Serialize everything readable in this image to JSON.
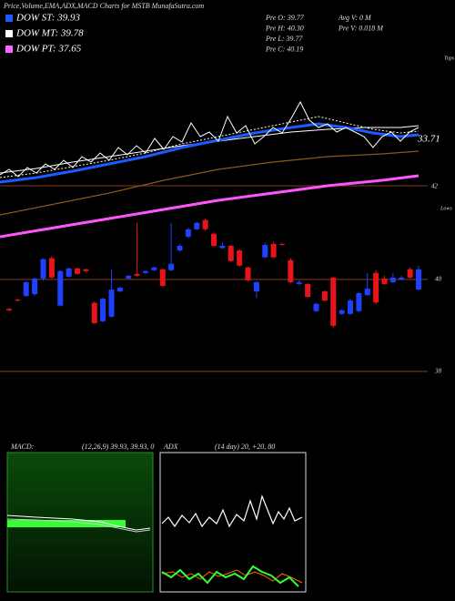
{
  "header": {
    "title": "Price,Volume,EMA,ADX,MACD Charts for MSTB MunafaSutra.com"
  },
  "legend": [
    {
      "label": "DOW ST: 39.93",
      "color": "#1a5cff"
    },
    {
      "label": "DOW MT: 39.78",
      "color": "#ffffff"
    },
    {
      "label": "DOW PT: 37.65",
      "color": "#ff66ff"
    }
  ],
  "stats": [
    "Pre O: 39.77",
    "Pre H: 40.30",
    "Pre L: 39.77",
    "Pre C: 40.19",
    "Avg V: 0 M",
    "Pre V: 0.018 M"
  ],
  "ema_panel": {
    "labels": [
      "Tops",
      "33.71",
      "42"
    ]
  },
  "chart_data": {
    "type": "candlestick",
    "label": "Lows",
    "candles": [
      [
        39.36,
        39.38,
        39.31,
        39.33
      ],
      [
        39.56,
        39.58,
        39.52,
        39.54
      ],
      [
        39.64,
        39.96,
        39.62,
        39.94
      ],
      [
        39.68,
        40.04,
        39.64,
        40.02
      ],
      [
        40.02,
        40.46,
        39.98,
        40.44
      ],
      [
        40.46,
        40.5,
        40.02,
        40.04
      ],
      [
        39.43,
        40.2,
        39.41,
        40.18
      ],
      [
        40.06,
        40.26,
        40.04,
        40.24
      ],
      [
        40.24,
        40.26,
        40.1,
        40.12
      ],
      [
        40.22,
        40.24,
        40.16,
        40.18
      ],
      [
        39.49,
        39.52,
        39.03,
        39.05
      ],
      [
        39.09,
        39.6,
        39.07,
        39.58
      ],
      [
        39.19,
        40.22,
        39.17,
        39.78
      ],
      [
        39.74,
        39.84,
        39.72,
        39.82
      ],
      [
        40.02,
        40.1,
        40.0,
        40.08
      ],
      [
        40.12,
        41.23,
        40.06,
        40.08
      ],
      [
        40.14,
        40.2,
        40.12,
        40.18
      ],
      [
        40.2,
        40.28,
        40.18,
        40.26
      ],
      [
        40.22,
        40.24,
        39.84,
        39.86
      ],
      [
        40.2,
        41.23,
        40.18,
        40.34
      ],
      [
        40.63,
        40.77,
        40.6,
        40.73
      ],
      [
        40.93,
        41.12,
        40.9,
        41.09
      ],
      [
        41.09,
        41.25,
        41.07,
        41.23
      ],
      [
        41.29,
        41.33,
        41.05,
        41.09
      ],
      [
        40.99,
        41.02,
        40.71,
        40.73
      ],
      [
        40.68,
        40.8,
        40.66,
        40.73
      ],
      [
        40.73,
        40.75,
        40.38,
        40.4
      ],
      [
        40.63,
        40.66,
        40.28,
        40.3
      ],
      [
        40.26,
        40.28,
        39.96,
        39.98
      ],
      [
        39.74,
        39.96,
        39.6,
        39.94
      ],
      [
        40.48,
        40.8,
        40.46,
        40.75
      ],
      [
        40.77,
        40.82,
        40.46,
        40.48
      ],
      [
        40.77,
        40.8,
        40.74,
        40.75
      ],
      [
        40.42,
        40.46,
        39.92,
        39.94
      ],
      [
        39.9,
        39.98,
        39.88,
        39.94
      ],
      [
        39.9,
        39.92,
        39.6,
        39.62
      ],
      [
        39.31,
        39.49,
        39.29,
        39.47
      ],
      [
        39.74,
        39.76,
        39.52,
        39.54
      ],
      [
        40.04,
        40.06,
        38.95,
        38.99
      ],
      [
        39.25,
        39.35,
        39.23,
        39.33
      ],
      [
        39.25,
        39.58,
        39.23,
        39.54
      ],
      [
        39.31,
        39.72,
        39.29,
        39.7
      ],
      [
        39.66,
        40.14,
        39.64,
        39.8
      ],
      [
        40.14,
        40.2,
        39.46,
        39.5
      ],
      [
        40.02,
        40.08,
        39.88,
        39.9
      ],
      [
        39.94,
        40.14,
        39.92,
        40.04
      ],
      [
        40.0,
        40.08,
        39.98,
        40.04
      ],
      [
        40.22,
        40.26,
        40.02,
        40.04
      ],
      [
        39.78,
        40.3,
        39.76,
        40.22
      ]
    ],
    "ylim": [
      36.77,
      41.62
    ],
    "yticks": [
      38,
      40
    ],
    "up_color": "#2040ff",
    "down_color": "#e8141a",
    "grid": true
  },
  "macd": {
    "title": "MACD:",
    "params": "(12,26,9) 39.93, 39.93, 0"
  },
  "adx": {
    "title": "ADX",
    "params": "(14 day) 20, +20, 80"
  }
}
